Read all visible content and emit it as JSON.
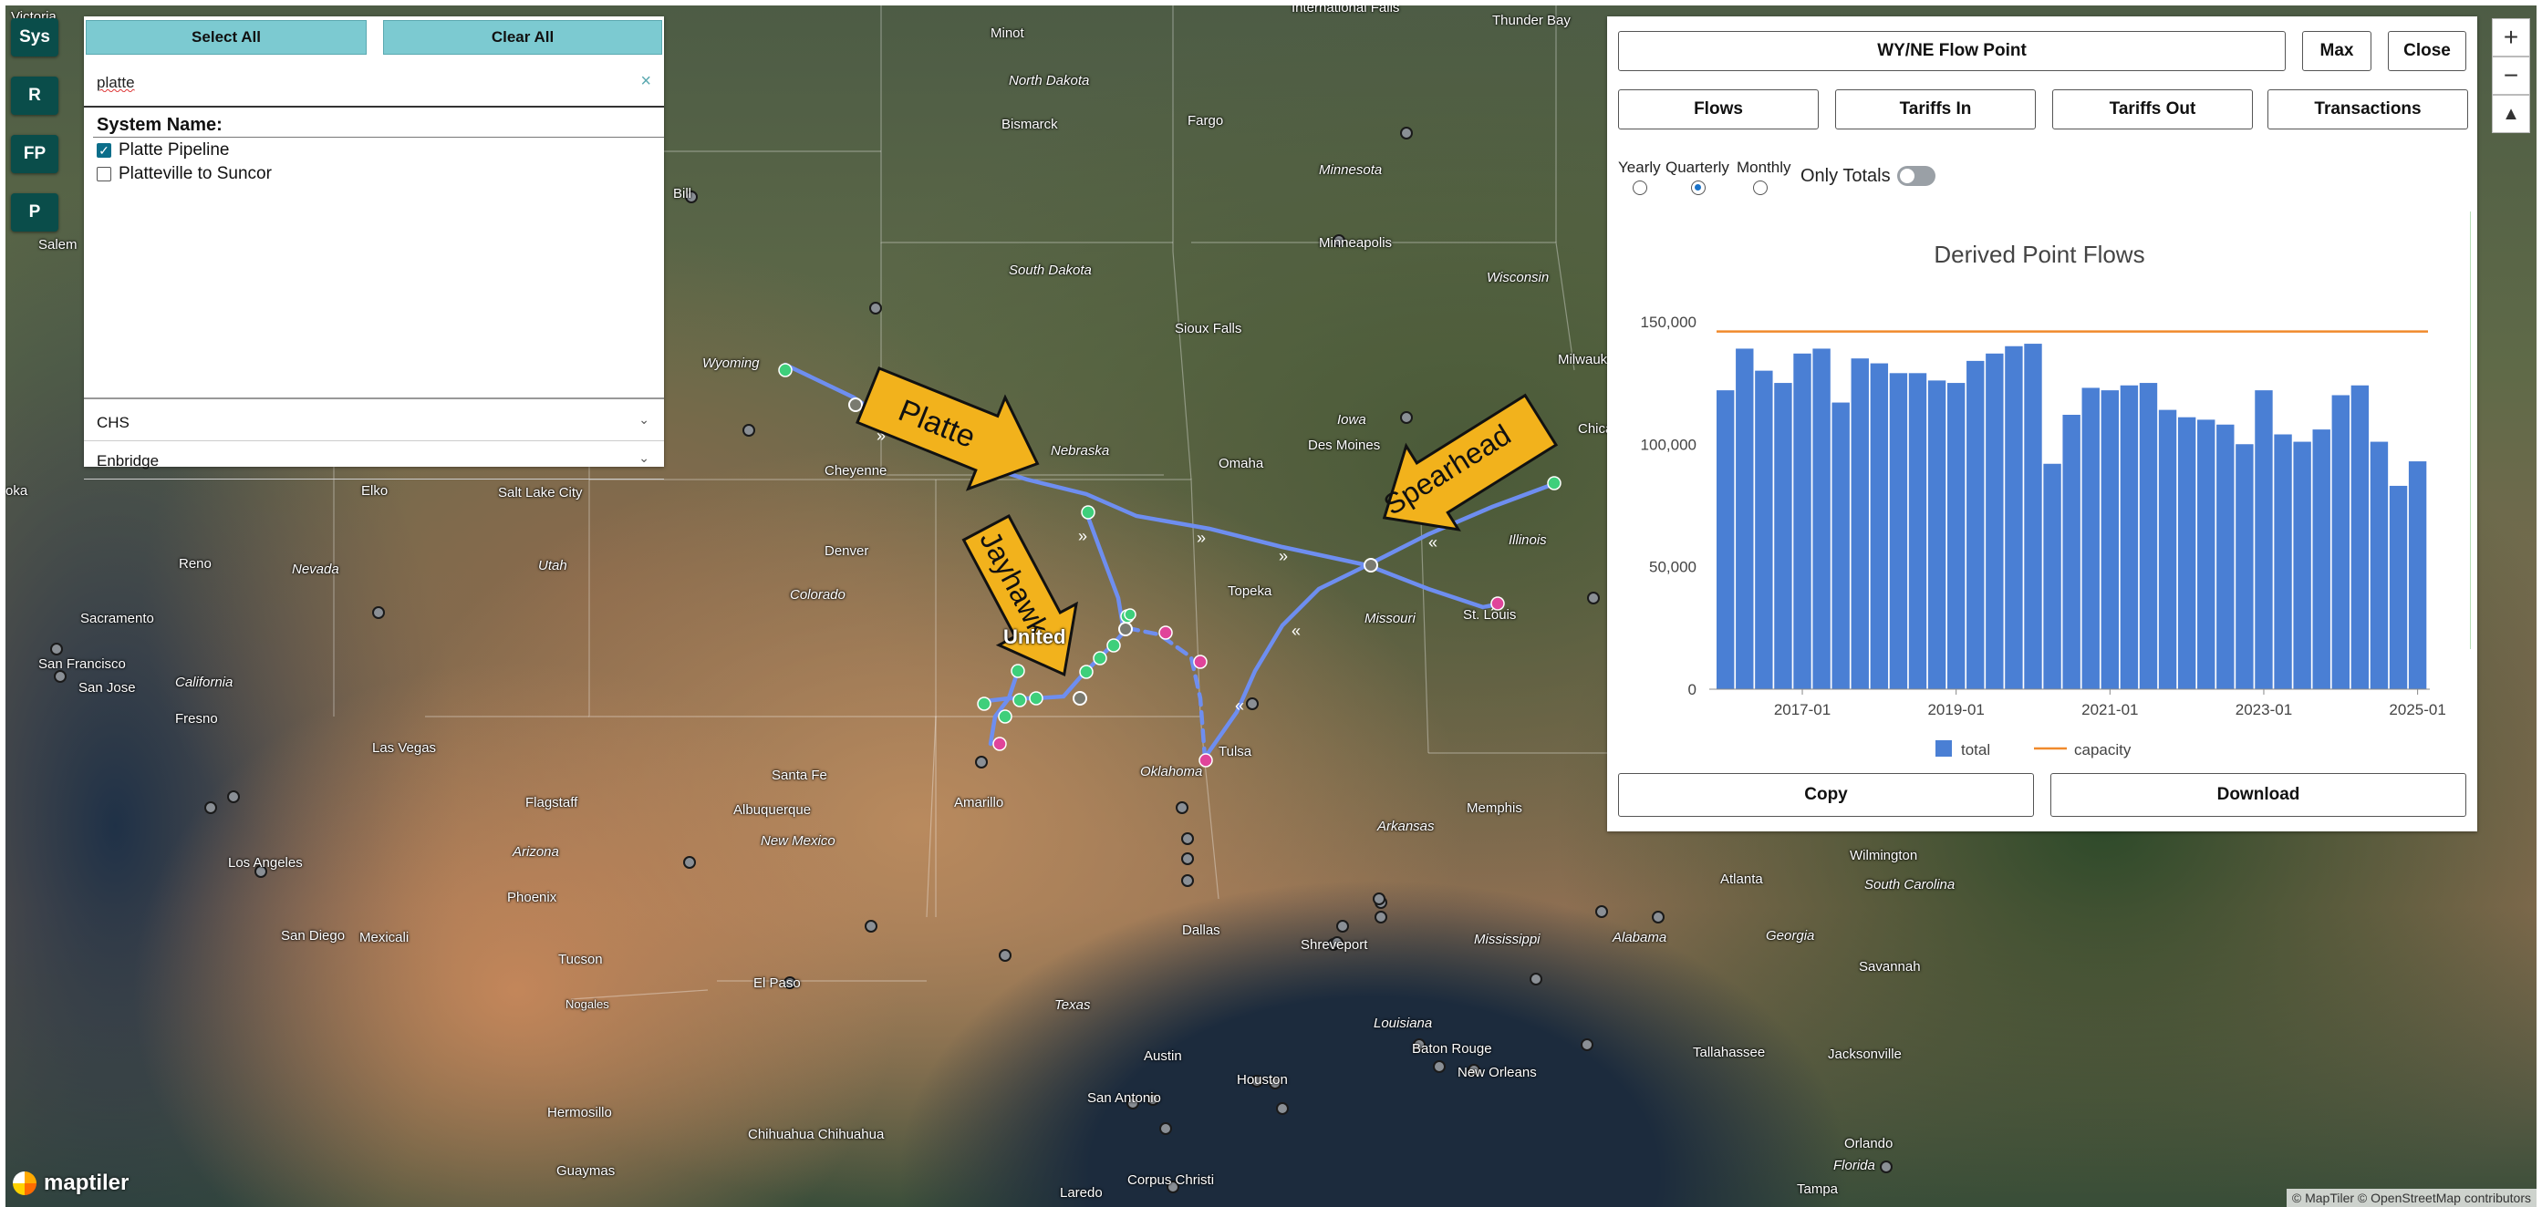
{
  "nav": {
    "sys": "Sys",
    "r": "R",
    "fp": "FP",
    "p": "P"
  },
  "systems_panel": {
    "select_all": "Select All",
    "clear_all": "Clear All",
    "search_value": "platte",
    "clear_icon": "×",
    "title": "System Name:",
    "items": [
      {
        "label": "Platte Pipeline",
        "checked": true
      },
      {
        "label": "Platteville to Suncor",
        "checked": false
      }
    ],
    "groups": [
      "CHS",
      "Enbridge"
    ]
  },
  "flow_panel": {
    "title": "WY/NE Flow Point",
    "max": "Max",
    "close": "Close",
    "tabs": [
      "Flows",
      "Tariffs In",
      "Tariffs Out",
      "Transactions"
    ],
    "periods": [
      "Yearly",
      "Quarterly",
      "Monthly"
    ],
    "selected_period": "Quarterly",
    "only_totals": "Only Totals",
    "only_totals_on": false,
    "copy": "Copy",
    "download": "Download"
  },
  "chart_data": {
    "type": "bar",
    "title": "Derived Point Flows",
    "xlabel": "",
    "ylabel": "",
    "x_tick_labels": [
      "2017-01",
      "2019-01",
      "2021-01",
      "2023-01",
      "2025-01"
    ],
    "y_tick_labels": [
      "0",
      "50,000",
      "100,000",
      "150,000"
    ],
    "ylim": [
      0,
      160000
    ],
    "x_start": "2016-01",
    "x_step": "quarter",
    "series": [
      {
        "name": "total",
        "color": "#4a7fd4",
        "values": [
          122000,
          139000,
          130000,
          125000,
          137000,
          139000,
          117000,
          135000,
          133000,
          129000,
          129000,
          126000,
          125000,
          134000,
          137000,
          140000,
          141000,
          92000,
          112000,
          123000,
          122000,
          124000,
          125000,
          114000,
          111000,
          110000,
          108000,
          100000,
          122000,
          104000,
          101000,
          106000,
          120000,
          124000,
          101000,
          83000,
          93000
        ]
      },
      {
        "name": "capacity",
        "color": "#f08a2c",
        "constant": 146000
      }
    ],
    "legend_position": "bottom",
    "grid": false
  },
  "map": {
    "labels": {
      "minot": "Minot",
      "thunder_bay": "Thunder Bay",
      "north_dakota": "North Dakota",
      "fargo": "Fargo",
      "bismarck": "Bismarck",
      "minnesota": "Minnesota",
      "minneapolis": "Minneapolis",
      "wisconsin": "Wisconsin",
      "south_dakota": "South Dakota",
      "sioux_falls": "Sioux Falls",
      "milwaukee": "Milwauke",
      "wyoming": "Wyoming",
      "billings": "Bill",
      "salem": "Salem",
      "nebraska": "Nebraska",
      "iowa": "Iowa",
      "des_moines": "Des Moines",
      "chicago": "Chica",
      "cheyenne": "Cheyenne",
      "omaha": "Omaha",
      "elko": "Elko",
      "salt_lake_city": "Salt Lake City",
      "illinois": "Illinois",
      "reno": "Reno",
      "nevada": "Nevada",
      "utah": "Utah",
      "denver": "Denver",
      "colorado": "Colorado",
      "topeka": "Topeka",
      "missouri": "Missouri",
      "st_louis": "St. Louis",
      "sacramento": "Sacramento",
      "san_francisco": "San Francisco",
      "san_jose": "San Jose",
      "california": "California",
      "fresno": "Fresno",
      "united_states": "United",
      "las_vegas": "Las Vegas",
      "oklahoma": "Oklahoma",
      "tulsa": "Tulsa",
      "santa_fe": "Santa Fe",
      "amarillo": "Amarillo",
      "albuquerque": "Albuquerque",
      "new_mexico": "New Mexico",
      "flagstaff": "Flagstaff",
      "arizona": "Arizona",
      "phoenix": "Phoenix",
      "los_angeles": "Los Angeles",
      "san_diego": "San Diego",
      "mexicali": "Mexicali",
      "tucson": "Tucson",
      "nogales": "Nogales",
      "el_paso": "El Paso",
      "dallas": "Dallas",
      "texas": "Texas",
      "shreveport": "Shreveport",
      "arkansas": "Arkansas",
      "memphis": "Memphis",
      "mississippi": "Mississippi",
      "alabama": "Alabama",
      "georgia": "Georgia",
      "atlanta": "Atlanta",
      "wilmington": "Wilmington",
      "south_carolina": "South Carolina",
      "savannah": "Savannah",
      "louisiana": "Louisiana",
      "baton_rouge": "Baton Rouge",
      "new_orleans": "New Orleans",
      "tallahassee": "Tallahassee",
      "jacksonville": "Jacksonville",
      "orlando": "Orlando",
      "florida": "Florida",
      "tampa": "Tampa",
      "austin": "Austin",
      "houston": "Houston",
      "san_antonio": "San Antonio",
      "laredo": "Laredo",
      "corpus_christi": "Corpus Christi",
      "hermosillo": "Hermosillo",
      "chihuahua": "Chihuahua Chihuahua",
      "guaymas": "Guaymas",
      "oka": "oka",
      "victoria": "Victoria",
      "international_falls": "International Falls"
    },
    "callouts": {
      "platte": "Platte",
      "jayhawk": "Jayhawk",
      "spearhead": "Spearhead"
    },
    "attribution": "© MapTiler © OpenStreetMap contributors",
    "logo": "maptiler",
    "zoom_in": "+",
    "zoom_out": "−",
    "compass": "▲"
  }
}
